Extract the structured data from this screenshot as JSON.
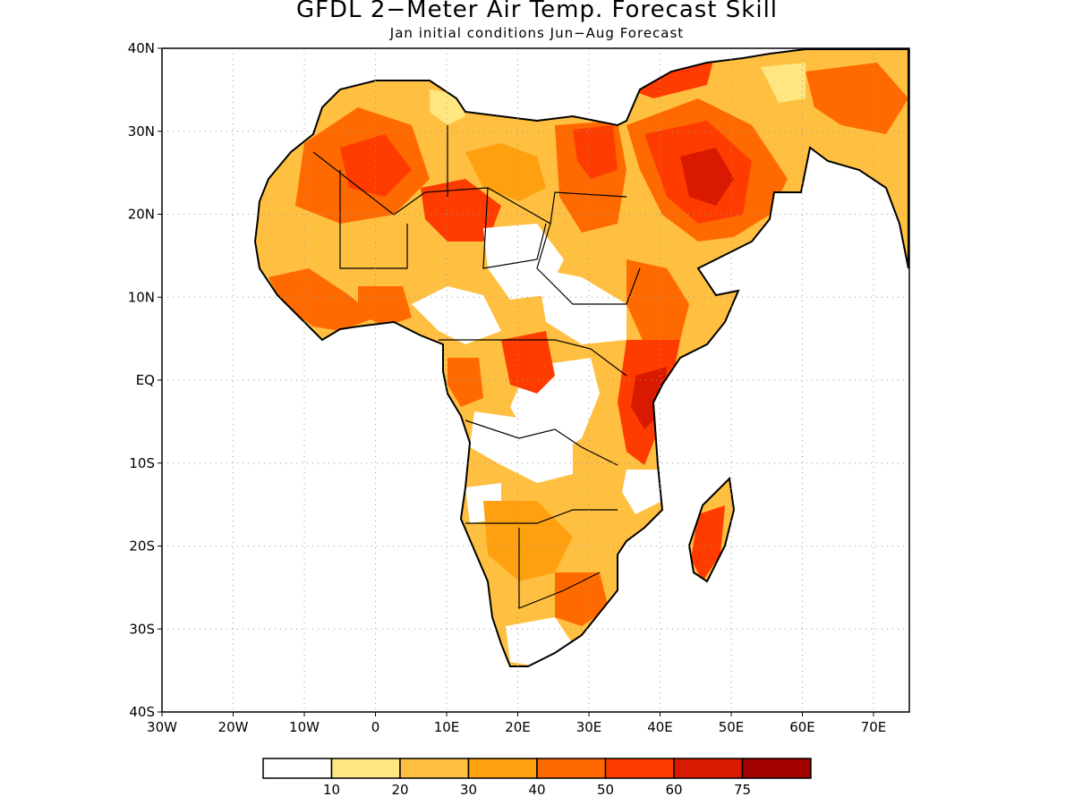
{
  "title": "GFDL 2−Meter Air Temp. Forecast Skill",
  "subtitle": "Jan initial conditions  Jun−Aug Forecast",
  "lat_labels": [
    "40N",
    "30N",
    "20N",
    "10N",
    "EQ",
    "10S",
    "20S",
    "30S",
    "40S"
  ],
  "lon_labels": [
    "30W",
    "20W",
    "10W",
    "0",
    "10E",
    "20E",
    "30E",
    "40E",
    "50E",
    "60E",
    "70E"
  ],
  "colorbar": {
    "colors": [
      "#ffffff",
      "#ffe680",
      "#ffbf40",
      "#ffa010",
      "#ff6a00",
      "#ff3c00",
      "#d91a00",
      "#a30000"
    ],
    "labels": [
      "10",
      "20",
      "30",
      "40",
      "50",
      "60",
      "75"
    ]
  }
}
